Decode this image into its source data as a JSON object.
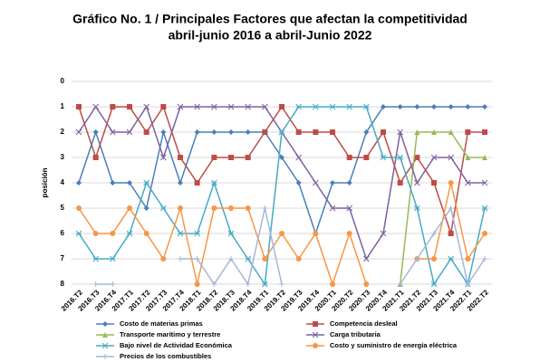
{
  "chart_data": {
    "type": "line",
    "title": "Gráfico No. 1 / Principales Factores que afectan la competitividad",
    "subtitle": "abril-junio 2016 a abril-Junio 2022",
    "y_label": "posición",
    "categories": [
      "2016.T2",
      "2016.T3",
      "2016.T4",
      "2017.T1",
      "2017.T2",
      "2017.T3",
      "2017.T4",
      "2018.T1",
      "2018.T2",
      "2018.T3",
      "2018.T4",
      "2019.T1",
      "2019.T2",
      "2019.T3",
      "2019.T4",
      "2020.T1",
      "2020.T2",
      "2020.T3",
      "2020.T4",
      "2021.T1",
      "2021.T2",
      "2021.T3",
      "2021.T4",
      "2022.T1",
      "2022.T2"
    ],
    "ylim": [
      0,
      8
    ],
    "yticks": [
      0,
      1,
      2,
      3,
      4,
      5,
      6,
      7,
      8
    ],
    "y_reversed": true,
    "grid": true,
    "series": [
      {
        "name": "Costo de materias primas",
        "color": "#4a7ebb",
        "marker": "diamond",
        "values": [
          4,
          2,
          4,
          4,
          5,
          2,
          4,
          2,
          2,
          2,
          2,
          2,
          3,
          4,
          6,
          4,
          4,
          2,
          1,
          1,
          1,
          1,
          1,
          1,
          1
        ]
      },
      {
        "name": "Competencia desleal",
        "color": "#be4b48",
        "marker": "square",
        "values": [
          1,
          3,
          1,
          1,
          2,
          1,
          3,
          4,
          3,
          3,
          3,
          2,
          1,
          2,
          2,
          2,
          3,
          3,
          2,
          4,
          3,
          4,
          6,
          2,
          2
        ]
      },
      {
        "name": "Transporte marítimo y terrestre",
        "color": "#98b954",
        "marker": "triangle",
        "values": [
          null,
          null,
          null,
          null,
          null,
          null,
          null,
          null,
          null,
          null,
          null,
          null,
          null,
          null,
          null,
          null,
          null,
          null,
          null,
          8,
          2,
          2,
          2,
          3,
          3
        ]
      },
      {
        "name": "Carga tributaria",
        "color": "#7d60a0",
        "marker": "x",
        "values": [
          2,
          1,
          2,
          2,
          1,
          3,
          1,
          1,
          1,
          1,
          1,
          1,
          2,
          3,
          4,
          5,
          5,
          7,
          6,
          2,
          4,
          3,
          3,
          4,
          4
        ]
      },
      {
        "name": "Bajo nivel de Actividad Económica",
        "color": "#46aac5",
        "marker": "star",
        "values": [
          6,
          7,
          7,
          6,
          4,
          5,
          6,
          6,
          4,
          6,
          7,
          8,
          2,
          1,
          1,
          1,
          1,
          1,
          3,
          3,
          5,
          8,
          7,
          8,
          5
        ]
      },
      {
        "name": "Costo y suministro de energía eléctrica",
        "color": "#f79646",
        "marker": "circle",
        "values": [
          5,
          6,
          6,
          5,
          6,
          7,
          5,
          8,
          5,
          5,
          5,
          7,
          6,
          7,
          6,
          8,
          6,
          8,
          null,
          null,
          7,
          7,
          4,
          7,
          6
        ]
      },
      {
        "name": "Precios de los combustibles",
        "color": "#a5b6d9",
        "marker": "plus",
        "values": [
          null,
          8,
          8,
          null,
          null,
          null,
          7,
          7,
          8,
          7,
          8,
          5,
          8,
          null,
          null,
          null,
          null,
          null,
          null,
          8,
          7,
          6,
          5,
          8,
          7
        ]
      }
    ]
  }
}
